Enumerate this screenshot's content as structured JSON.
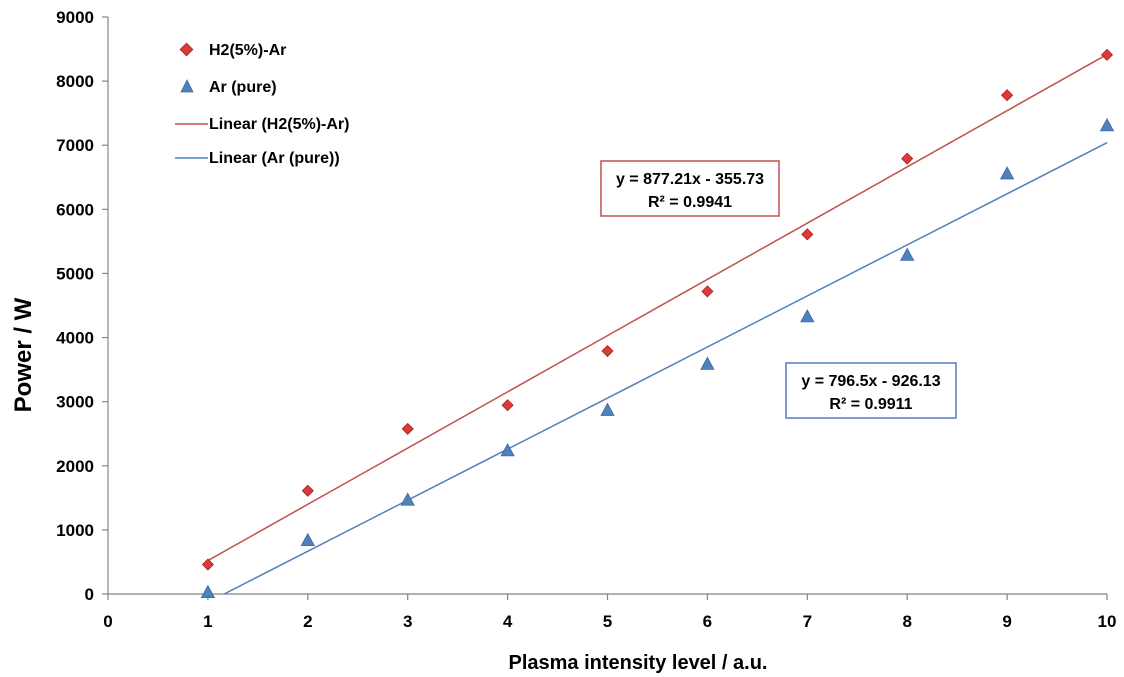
{
  "chart_data": {
    "type": "scatter",
    "xlabel": "Plasma intensity level / a.u.",
    "ylabel": "Power / W",
    "xlim": [
      0,
      10
    ],
    "ylim": [
      0,
      9000
    ],
    "x_ticks": [
      "0",
      "1",
      "2",
      "3",
      "4",
      "5",
      "6",
      "7",
      "8",
      "9",
      "10"
    ],
    "y_ticks": [
      "0",
      "1000",
      "2000",
      "3000",
      "4000",
      "5000",
      "6000",
      "7000",
      "8000",
      "9000"
    ],
    "grid": false,
    "legend_position": "top-left",
    "series": [
      {
        "name": "H2(5%)-Ar",
        "marker": "diamond",
        "color": "#d93a3a",
        "x": [
          1,
          2,
          3,
          4,
          5,
          6,
          7,
          8,
          9,
          10
        ],
        "y": [
          460,
          1610,
          2575,
          2945,
          3790,
          4720,
          5610,
          6790,
          7780,
          8410
        ]
      },
      {
        "name": "Ar (pure)",
        "marker": "triangle",
        "color": "#4f81bd",
        "x": [
          1,
          2,
          3,
          4,
          5,
          6,
          7,
          8,
          9,
          10
        ],
        "y": [
          30,
          840,
          1470,
          2240,
          2870,
          3590,
          4330,
          5290,
          6560,
          7310
        ]
      }
    ],
    "trendlines": [
      {
        "name": "Linear (H2(5%)-Ar)",
        "color": "#c0504d",
        "slope": 877.21,
        "intercept": -355.73,
        "x_range": [
          1,
          10
        ],
        "equation": "y = 877.21x - 355.73",
        "r2": "R² = 0.9941"
      },
      {
        "name": "Linear (Ar (pure))",
        "color": "#4f81bd",
        "slope": 796.5,
        "intercept": -926.13,
        "x_range": [
          1,
          10
        ],
        "equation": "y = 796.5x - 926.13",
        "r2": "R² = 0.9911"
      }
    ]
  }
}
